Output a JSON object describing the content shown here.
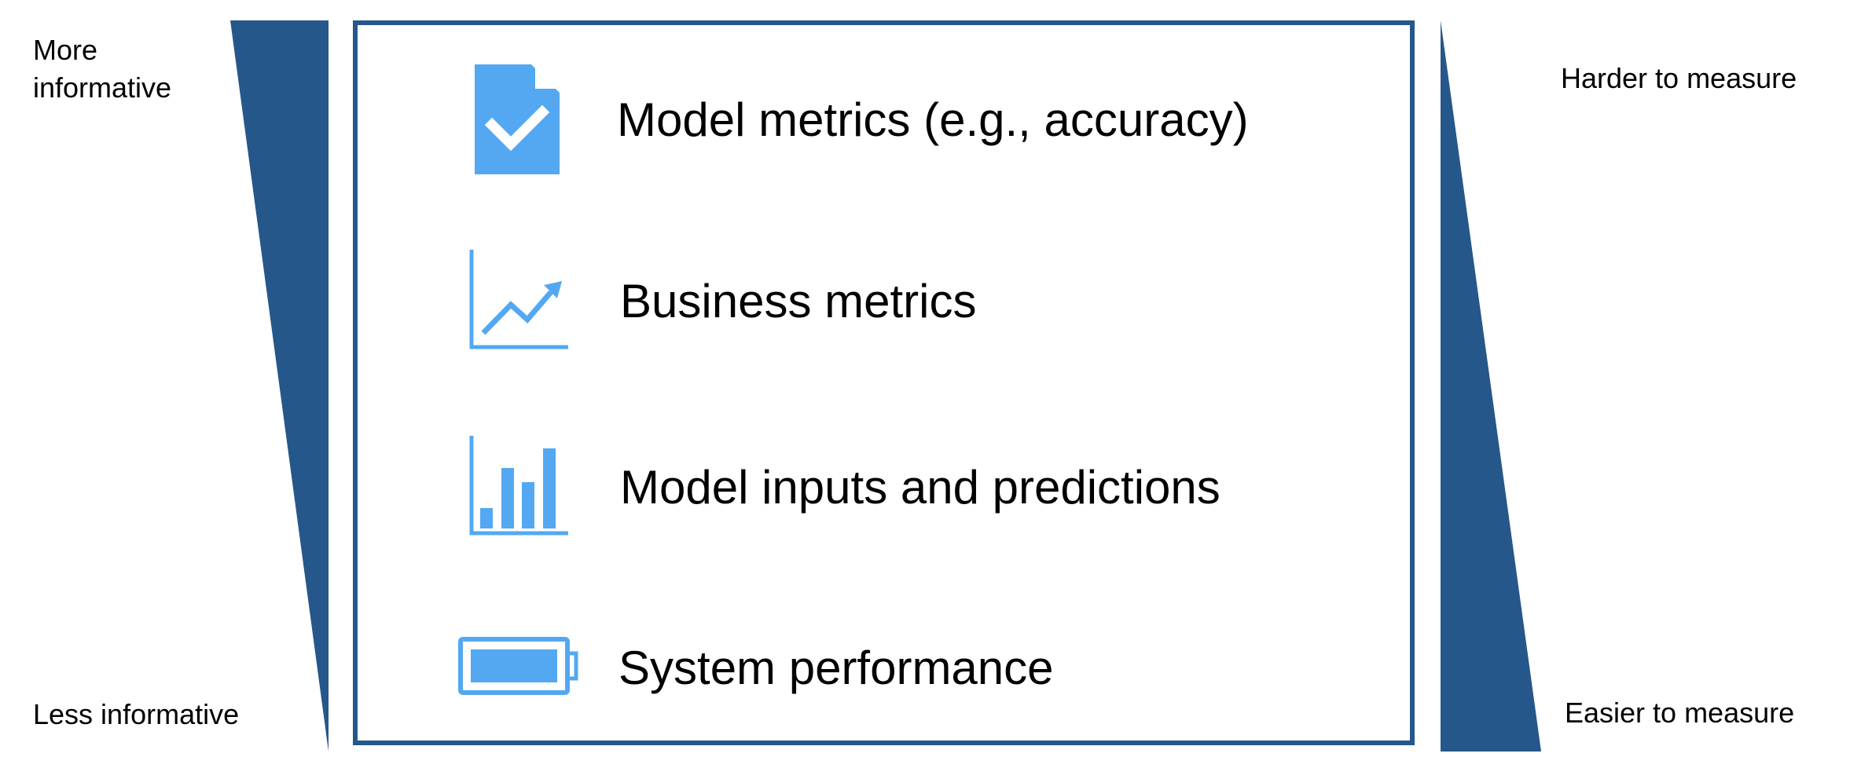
{
  "colors": {
    "accent_dark": "#25578a",
    "icon_blue": "#54a8f2"
  },
  "left_axis": {
    "top_label_line1": "More",
    "top_label_line2": "informative",
    "bottom_label": "Less informative"
  },
  "right_axis": {
    "top_label": "Harder to measure",
    "bottom_label": "Easier to measure"
  },
  "rows": [
    {
      "label": "Model metrics (e.g., accuracy)",
      "icon": "document-check-icon"
    },
    {
      "label": "Business metrics",
      "icon": "line-chart-trend-icon"
    },
    {
      "label": "Model inputs and predictions",
      "icon": "bar-chart-icon"
    },
    {
      "label": "System performance",
      "icon": "battery-icon"
    }
  ]
}
